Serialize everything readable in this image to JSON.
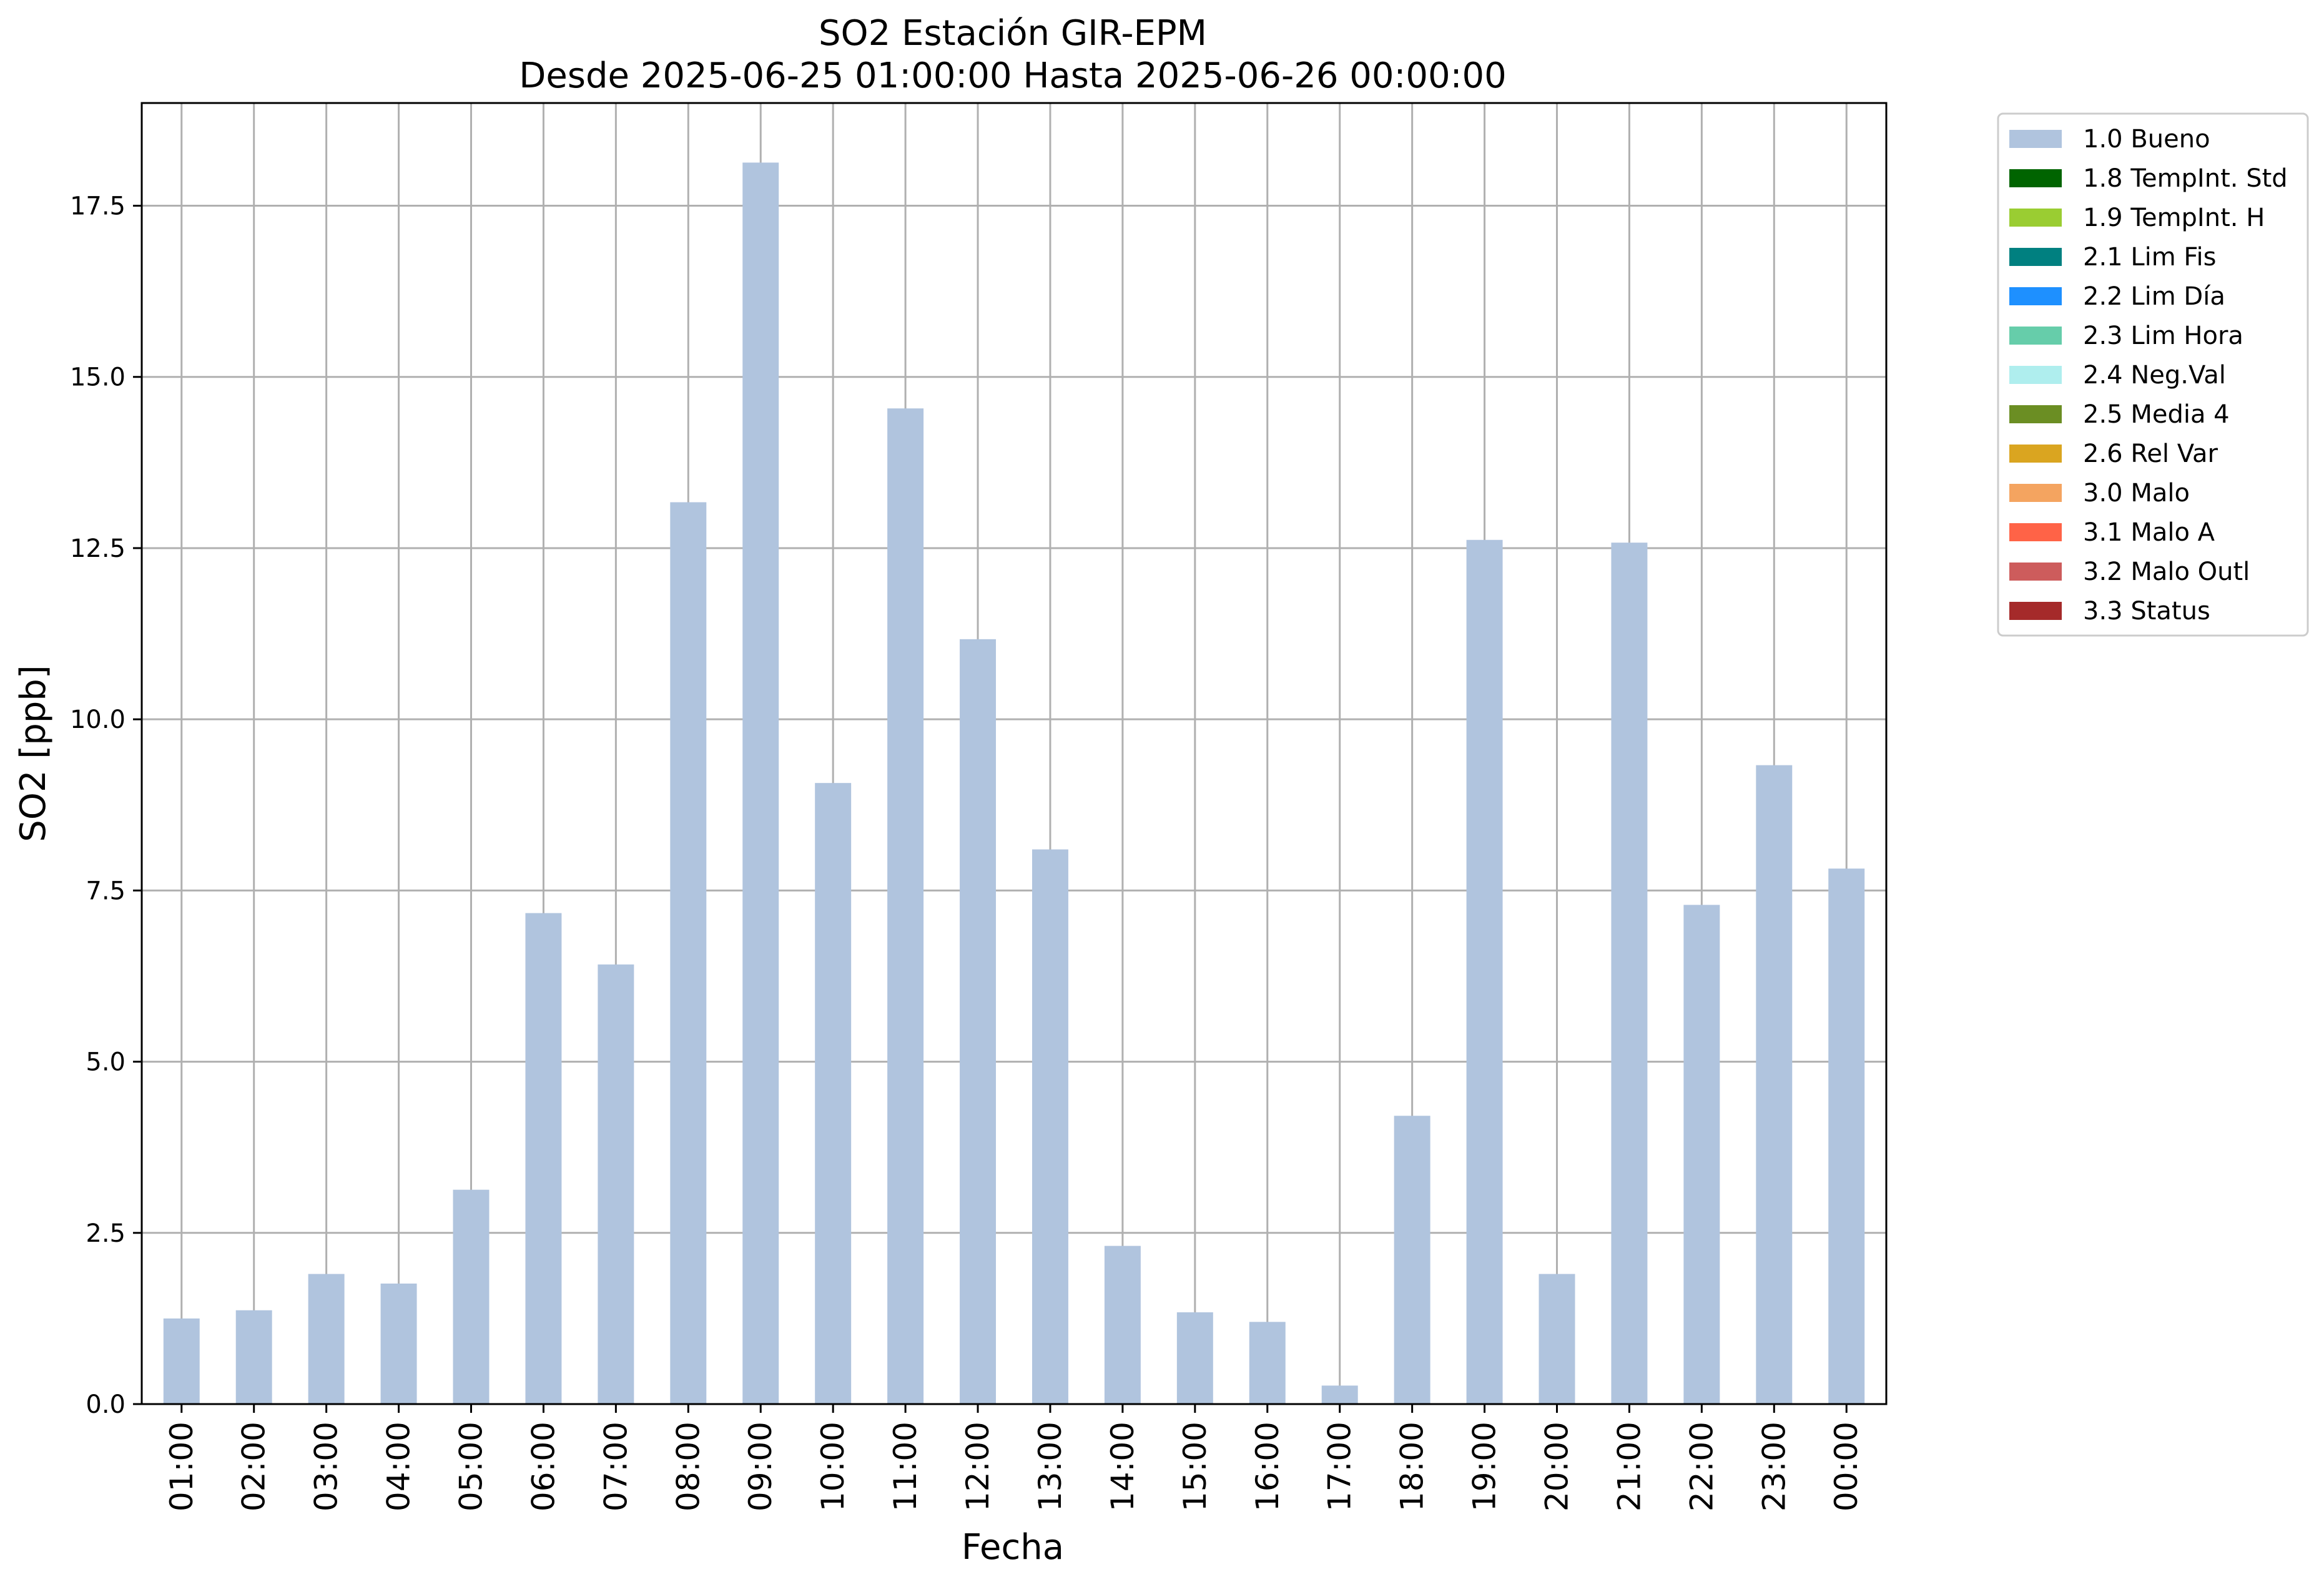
{
  "chart_data": {
    "type": "bar",
    "title": "SO2 Estación GIR-EPM",
    "subtitle": "Desde 2025-06-25 01:00:00 Hasta 2025-06-26 00:00:00",
    "xlabel": "Fecha",
    "ylabel": "SO2 [ppb]",
    "ylim": [
      0,
      19.0
    ],
    "yticks": [
      "0.0",
      "2.5",
      "5.0",
      "7.5",
      "10.0",
      "12.5",
      "15.0",
      "17.5"
    ],
    "grid": true,
    "legend_position": "outside right, top",
    "categories": [
      "01:00",
      "02:00",
      "03:00",
      "04:00",
      "05:00",
      "06:00",
      "07:00",
      "08:00",
      "09:00",
      "10:00",
      "11:00",
      "12:00",
      "13:00",
      "14:00",
      "15:00",
      "16:00",
      "17:00",
      "18:00",
      "19:00",
      "20:00",
      "21:00",
      "22:00",
      "23:00",
      "00:00"
    ],
    "series": [
      {
        "name": "1.0 Bueno",
        "color": "#b0c4de",
        "values": [
          1.25,
          1.37,
          1.9,
          1.76,
          3.13,
          7.17,
          6.42,
          13.17,
          18.13,
          9.07,
          14.54,
          11.17,
          8.1,
          2.31,
          1.34,
          1.2,
          0.27,
          4.21,
          12.62,
          1.9,
          12.58,
          7.29,
          9.33,
          7.82
        ]
      }
    ],
    "legend": [
      {
        "label": "1.0 Bueno",
        "color": "#b0c4de"
      },
      {
        "label": "1.8 TempInt. Std",
        "color": "#006400"
      },
      {
        "label": "1.9 TempInt. H",
        "color": "#9acd32"
      },
      {
        "label": "2.1 Lim Fis",
        "color": "#008080"
      },
      {
        "label": "2.2 Lim Día",
        "color": "#1e90ff"
      },
      {
        "label": "2.3 Lim Hora",
        "color": "#66cdaa"
      },
      {
        "label": "2.4 Neg.Val",
        "color": "#afeeee"
      },
      {
        "label": "2.5 Media 4",
        "color": "#6b8e23"
      },
      {
        "label": "2.6 Rel Var",
        "color": "#daa520"
      },
      {
        "label": "3.0 Malo",
        "color": "#f4a460"
      },
      {
        "label": "3.1 Malo A",
        "color": "#ff6347"
      },
      {
        "label": "3.2 Malo Outl",
        "color": "#cd5c5c"
      },
      {
        "label": "3.3 Status",
        "color": "#a52a2a"
      }
    ]
  }
}
